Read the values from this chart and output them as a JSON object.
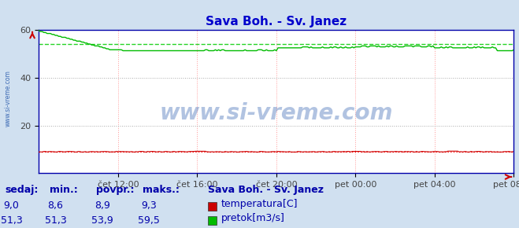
{
  "title": "Sava Boh. - Sv. Janez",
  "title_color": "#0000cc",
  "fig_bg_color": "#d0e0f0",
  "plot_bg_color": "#ffffff",
  "xlim": [
    0,
    288
  ],
  "ylim": [
    0,
    60
  ],
  "yticks": [
    20,
    40,
    60
  ],
  "xtick_labels": [
    "čet 12:00",
    "čet 16:00",
    "čet 20:00",
    "pet 00:00",
    "pet 04:00",
    "pet 08:00"
  ],
  "xtick_positions": [
    48,
    96,
    144,
    192,
    240,
    288
  ],
  "avg_line_color_green": "#00cc00",
  "avg_line_color_red": "#ff0000",
  "temp_avg": 8.9,
  "flow_avg": 53.9,
  "temp_color": "#cc0000",
  "flow_color": "#00bb00",
  "watermark": "www.si-vreme.com",
  "watermark_color": "#2255aa",
  "watermark_alpha": 0.35,
  "left_label": "www.si-vreme.com",
  "ylabel_color": "#2255aa",
  "axis_color": "#0000aa",
  "tick_color": "#444444",
  "legend_title": "Sava Boh. - Sv. Janez",
  "legend_labels": [
    "temperatura[C]",
    "pretok[m3/s]"
  ],
  "legend_colors": [
    "#cc0000",
    "#00bb00"
  ],
  "table_headers": [
    "sedaj:",
    "min.:",
    "povpr.:",
    "maks.:"
  ],
  "table_temp": [
    "9,0",
    "8,6",
    "8,9",
    "9,3"
  ],
  "table_flow": [
    "51,3",
    "51,3",
    "53,9",
    "59,5"
  ],
  "table_color": "#0000aa",
  "table_fontsize": 9
}
